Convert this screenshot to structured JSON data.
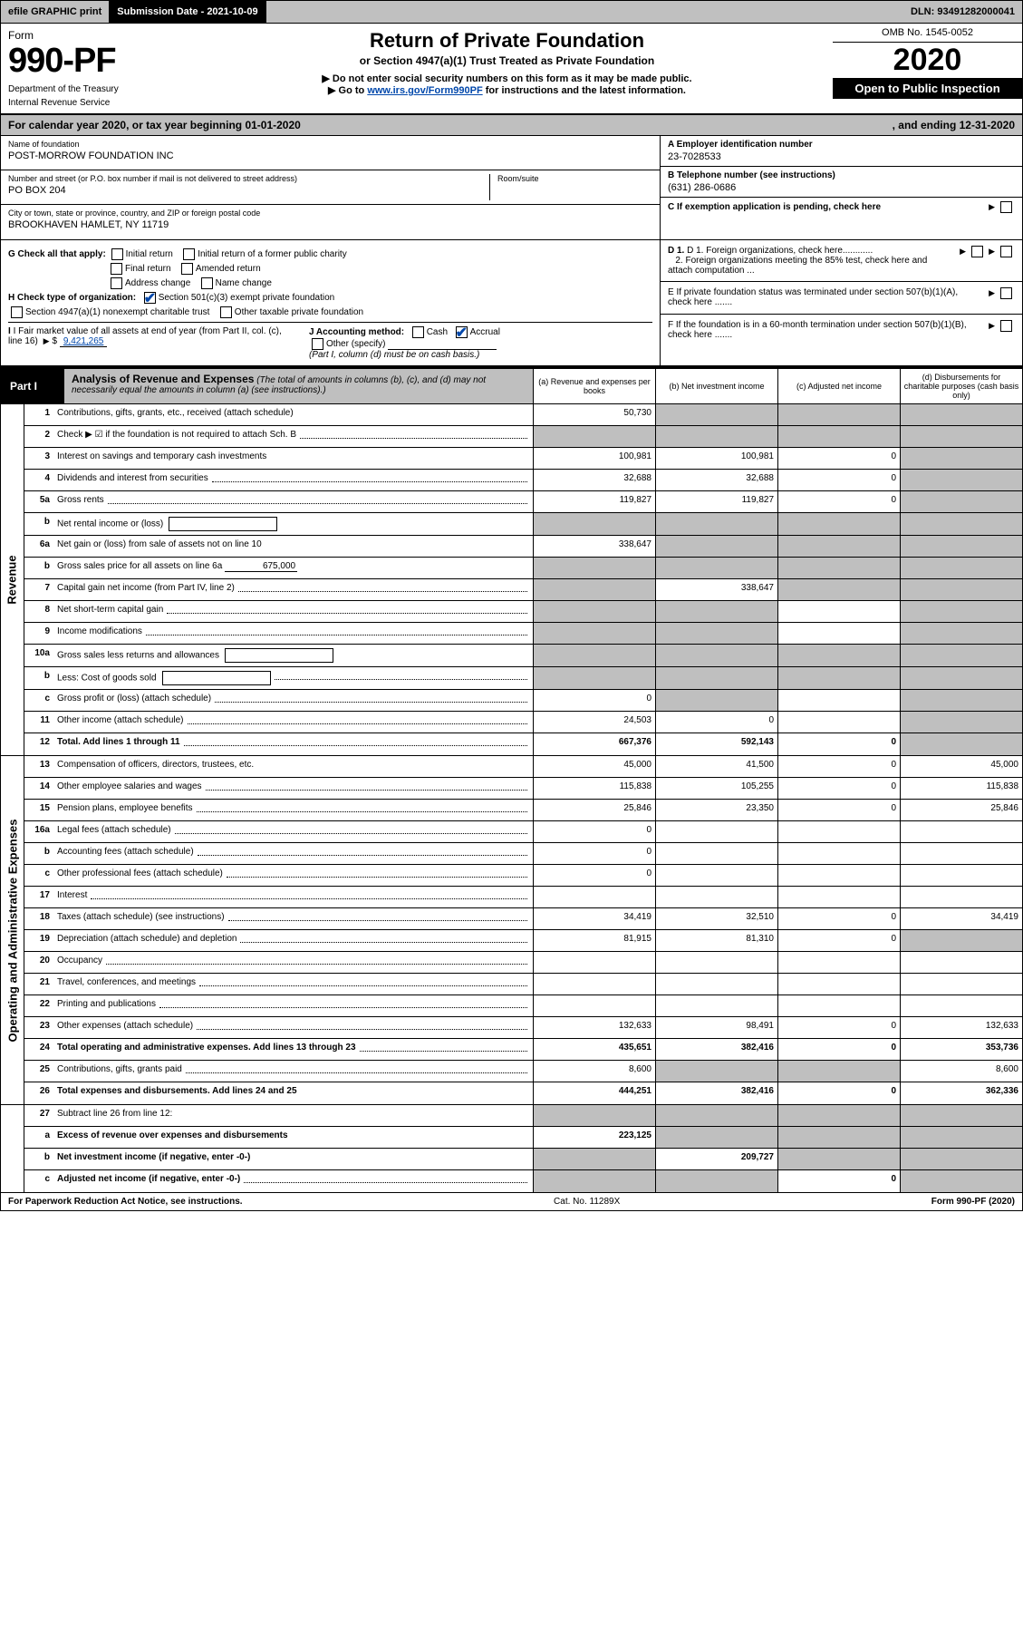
{
  "topbar": {
    "efile": "efile GRAPHIC print",
    "sub_lbl": "Submission Date - 2021-10-09",
    "dln": "DLN: 93491282000041"
  },
  "hdr": {
    "form_word": "Form",
    "form_no": "990-PF",
    "dept": "Department of the Treasury",
    "irs": "Internal Revenue Service",
    "title": "Return of Private Foundation",
    "subtitle": "or Section 4947(a)(1) Trust Treated as Private Foundation",
    "note1": "▶ Do not enter social security numbers on this form as it may be made public.",
    "note2_pre": "▶ Go to ",
    "note2_link": "www.irs.gov/Form990PF",
    "note2_post": " for instructions and the latest information.",
    "omb": "OMB No. 1545-0052",
    "year": "2020",
    "open": "Open to Public Inspection"
  },
  "cal": {
    "left": "For calendar year 2020, or tax year beginning 01-01-2020",
    "right": ", and ending 12-31-2020"
  },
  "ent": {
    "name_lbl": "Name of foundation",
    "name_val": "POST-MORROW FOUNDATION INC",
    "addr_lbl": "Number and street (or P.O. box number if mail is not delivered to street address)",
    "addr_val": "PO BOX 204",
    "room_lbl": "Room/suite",
    "city_lbl": "City or town, state or province, country, and ZIP or foreign postal code",
    "city_val": "BROOKHAVEN HAMLET, NY  11719",
    "A_lbl": "A Employer identification number",
    "A_val": "23-7028533",
    "B_lbl": "B Telephone number (see instructions)",
    "B_val": "(631) 286-0686",
    "C_lbl": "C If exemption application is pending, check here"
  },
  "mid": {
    "G": "G Check all that apply:",
    "G1": "Initial return",
    "G2": "Initial return of a former public charity",
    "G3": "Final return",
    "G4": "Amended return",
    "G5": "Address change",
    "G6": "Name change",
    "H": "H Check type of organization:",
    "H1": "Section 501(c)(3) exempt private foundation",
    "H2": "Section 4947(a)(1) nonexempt charitable trust",
    "H3": "Other taxable private foundation",
    "I": "I Fair market value of all assets at end of year (from Part II, col. (c), line 16)",
    "I_val": "9,421,265",
    "J": "J Accounting method:",
    "J1": "Cash",
    "J2": "Accrual",
    "J3": "Other (specify)",
    "J_note": "(Part I, column (d) must be on cash basis.)",
    "D1": "D 1. Foreign organizations, check here............",
    "D2": "2. Foreign organizations meeting the 85% test, check here and attach computation ...",
    "E": "E  If private foundation status was terminated under section 507(b)(1)(A), check here .......",
    "F": "F  If the foundation is in a 60-month termination under section 507(b)(1)(B), check here ......."
  },
  "p1": {
    "label": "Part I",
    "title": "Analysis of Revenue and Expenses",
    "title_note": " (The total of amounts in columns (b), (c), and (d) may not necessarily equal the amounts in column (a) (see instructions).)",
    "ca": "(a)   Revenue and expenses per books",
    "cb": "(b)   Net investment income",
    "cc": "(c)   Adjusted net income",
    "cd": "(d)   Disbursements for charitable purposes (cash basis only)"
  },
  "rev_label": "Revenue",
  "exp_label": "Operating and Administrative Expenses",
  "rows": [
    {
      "n": "1",
      "d": "Contributions, gifts, grants, etc., received (attach schedule)",
      "a": "50,730",
      "b": "shade",
      "c": "shade",
      "dv": "shade"
    },
    {
      "n": "2",
      "d": "Check ▶ ☑ if the foundation is not required to attach Sch. B",
      "dots": true,
      "a": "shade",
      "b": "shade",
      "c": "shade",
      "dv": "shade",
      "bold_not": true
    },
    {
      "n": "3",
      "d": "Interest on savings and temporary cash investments",
      "a": "100,981",
      "b": "100,981",
      "c": "0",
      "dv": "shade"
    },
    {
      "n": "4",
      "d": "Dividends and interest from securities",
      "dots": true,
      "a": "32,688",
      "b": "32,688",
      "c": "0",
      "dv": "shade"
    },
    {
      "n": "5a",
      "d": "Gross rents",
      "dots": true,
      "a": "119,827",
      "b": "119,827",
      "c": "0",
      "dv": "shade"
    },
    {
      "n": "b",
      "d": "Net rental income or (loss)",
      "box": true,
      "a": "shade",
      "b": "shade",
      "c": "shade",
      "dv": "shade"
    },
    {
      "n": "6a",
      "d": "Net gain or (loss) from sale of assets not on line 10",
      "a": "338,647",
      "b": "shade",
      "c": "shade",
      "dv": "shade"
    },
    {
      "n": "b",
      "d": "Gross sales price for all assets on line 6a",
      "inline_u": "675,000",
      "a": "shade",
      "b": "shade",
      "c": "shade",
      "dv": "shade"
    },
    {
      "n": "7",
      "d": "Capital gain net income (from Part IV, line 2)",
      "dots": true,
      "a": "shade",
      "b": "338,647",
      "c": "shade",
      "dv": "shade"
    },
    {
      "n": "8",
      "d": "Net short-term capital gain",
      "dots": true,
      "a": "shade",
      "b": "shade",
      "c": "",
      "dv": "shade"
    },
    {
      "n": "9",
      "d": "Income modifications",
      "dots": true,
      "a": "shade",
      "b": "shade",
      "c": "",
      "dv": "shade"
    },
    {
      "n": "10a",
      "d": "Gross sales less returns and allowances",
      "box": true,
      "a": "shade",
      "b": "shade",
      "c": "shade",
      "dv": "shade"
    },
    {
      "n": "b",
      "d": "Less: Cost of goods sold",
      "dots": true,
      "box": true,
      "a": "shade",
      "b": "shade",
      "c": "shade",
      "dv": "shade"
    },
    {
      "n": "c",
      "d": "Gross profit or (loss) (attach schedule)",
      "dots": true,
      "a": "0",
      "b": "shade",
      "c": "",
      "dv": "shade"
    },
    {
      "n": "11",
      "d": "Other income (attach schedule)",
      "dots": true,
      "a": "24,503",
      "b": "0",
      "c": "",
      "dv": "shade"
    },
    {
      "n": "12",
      "d": "Total. Add lines 1 through 11",
      "dots": true,
      "a": "667,376",
      "b": "592,143",
      "c": "0",
      "dv": "shade",
      "total": true
    }
  ],
  "exprows": [
    {
      "n": "13",
      "d": "Compensation of officers, directors, trustees, etc.",
      "a": "45,000",
      "b": "41,500",
      "c": "0",
      "dv": "45,000"
    },
    {
      "n": "14",
      "d": "Other employee salaries and wages",
      "dots": true,
      "a": "115,838",
      "b": "105,255",
      "c": "0",
      "dv": "115,838"
    },
    {
      "n": "15",
      "d": "Pension plans, employee benefits",
      "dots": true,
      "a": "25,846",
      "b": "23,350",
      "c": "0",
      "dv": "25,846"
    },
    {
      "n": "16a",
      "d": "Legal fees (attach schedule)",
      "dots": true,
      "a": "0",
      "b": "",
      "c": "",
      "dv": ""
    },
    {
      "n": "b",
      "d": "Accounting fees (attach schedule)",
      "dots": true,
      "a": "0",
      "b": "",
      "c": "",
      "dv": ""
    },
    {
      "n": "c",
      "d": "Other professional fees (attach schedule)",
      "dots": true,
      "a": "0",
      "b": "",
      "c": "",
      "dv": ""
    },
    {
      "n": "17",
      "d": "Interest",
      "dots": true,
      "a": "",
      "b": "",
      "c": "",
      "dv": ""
    },
    {
      "n": "18",
      "d": "Taxes (attach schedule) (see instructions)",
      "dots": true,
      "a": "34,419",
      "b": "32,510",
      "c": "0",
      "dv": "34,419"
    },
    {
      "n": "19",
      "d": "Depreciation (attach schedule) and depletion",
      "dots": true,
      "a": "81,915",
      "b": "81,310",
      "c": "0",
      "dv": "shade"
    },
    {
      "n": "20",
      "d": "Occupancy",
      "dots": true,
      "a": "",
      "b": "",
      "c": "",
      "dv": ""
    },
    {
      "n": "21",
      "d": "Travel, conferences, and meetings",
      "dots": true,
      "a": "",
      "b": "",
      "c": "",
      "dv": ""
    },
    {
      "n": "22",
      "d": "Printing and publications",
      "dots": true,
      "a": "",
      "b": "",
      "c": "",
      "dv": ""
    },
    {
      "n": "23",
      "d": "Other expenses (attach schedule)",
      "dots": true,
      "a": "132,633",
      "b": "98,491",
      "c": "0",
      "dv": "132,633"
    },
    {
      "n": "24",
      "d": "Total operating and administrative expenses. Add lines 13 through 23",
      "dots": true,
      "a": "435,651",
      "b": "382,416",
      "c": "0",
      "dv": "353,736",
      "total": true
    },
    {
      "n": "25",
      "d": "Contributions, gifts, grants paid",
      "dots": true,
      "a": "8,600",
      "b": "shade",
      "c": "shade",
      "dv": "8,600"
    },
    {
      "n": "26",
      "d": "Total expenses and disbursements. Add lines 24 and 25",
      "a": "444,251",
      "b": "382,416",
      "c": "0",
      "dv": "362,336",
      "total": true
    }
  ],
  "netrows": [
    {
      "n": "27",
      "d": "Subtract line 26 from line 12:",
      "a": "shade",
      "b": "shade",
      "c": "shade",
      "dv": "shade"
    },
    {
      "n": "a",
      "d": "Excess of revenue over expenses and disbursements",
      "a": "223,125",
      "b": "shade",
      "c": "shade",
      "dv": "shade",
      "total": true
    },
    {
      "n": "b",
      "d": "Net investment income (if negative, enter -0-)",
      "a": "shade",
      "b": "209,727",
      "c": "shade",
      "dv": "shade",
      "total": true
    },
    {
      "n": "c",
      "d": "Adjusted net income (if negative, enter -0-)",
      "dots": true,
      "a": "shade",
      "b": "shade",
      "c": "0",
      "dv": "shade",
      "total": true
    }
  ],
  "ftr": {
    "left": "For Paperwork Reduction Act Notice, see instructions.",
    "mid": "Cat. No. 11289X",
    "right": "Form 990-PF (2020)"
  }
}
